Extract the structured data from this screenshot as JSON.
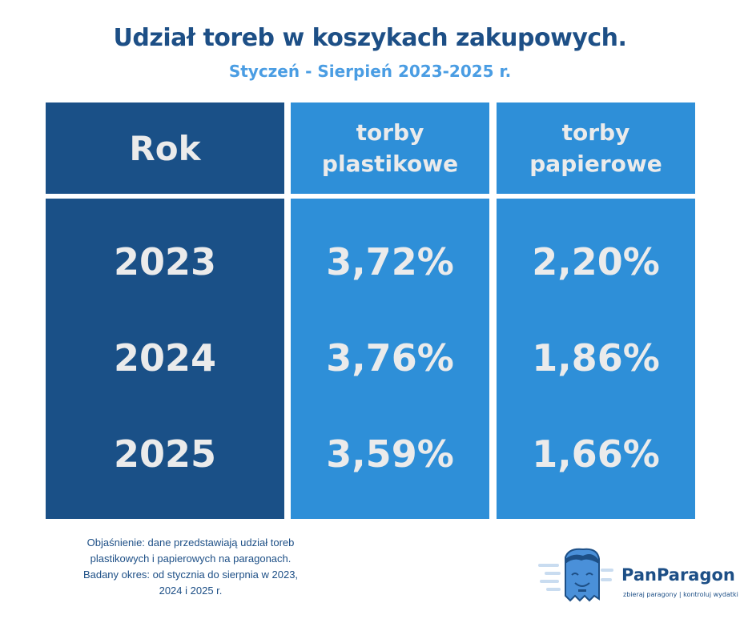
{
  "title": "Udział toreb w koszykach zakupowych.",
  "subtitle": "Styczeń - Sierpień 2023-2025 r.",
  "chart_data": {
    "type": "table",
    "columns": [
      "Rok",
      "torby plastikowe",
      "torby papierowe"
    ],
    "header": {
      "col0": "Rok",
      "col1_line1": "torby",
      "col1_line2": "plastikowe",
      "col2_line1": "torby",
      "col2_line2": "papierowe"
    },
    "rows": [
      {
        "year": "2023",
        "plastic": "3,72%",
        "paper": "2,20%"
      },
      {
        "year": "2024",
        "plastic": "3,76%",
        "paper": "1,86%"
      },
      {
        "year": "2025",
        "plastic": "3,59%",
        "paper": "1,66%"
      }
    ],
    "values": {
      "plastic": [
        3.72,
        3.76,
        3.59
      ],
      "paper": [
        2.2,
        1.86,
        1.66
      ]
    }
  },
  "note": [
    "Objaśnienie: dane przedstawiają udział toreb",
    "plastikowych i papierowych na paragonach.",
    "Badany okres: od stycznia do sierpnia w 2023,",
    "2024 i 2025 r."
  ],
  "brand": {
    "name": "PanParagon",
    "tagline": "zbieraj paragony | kontroluj wydatki"
  },
  "colors": {
    "title": "#1d4f86",
    "subtitle": "#4a9de3",
    "dark_column": "#1a5087",
    "light_column": "#2e8fd8",
    "cell_text": "#ebebeb"
  }
}
